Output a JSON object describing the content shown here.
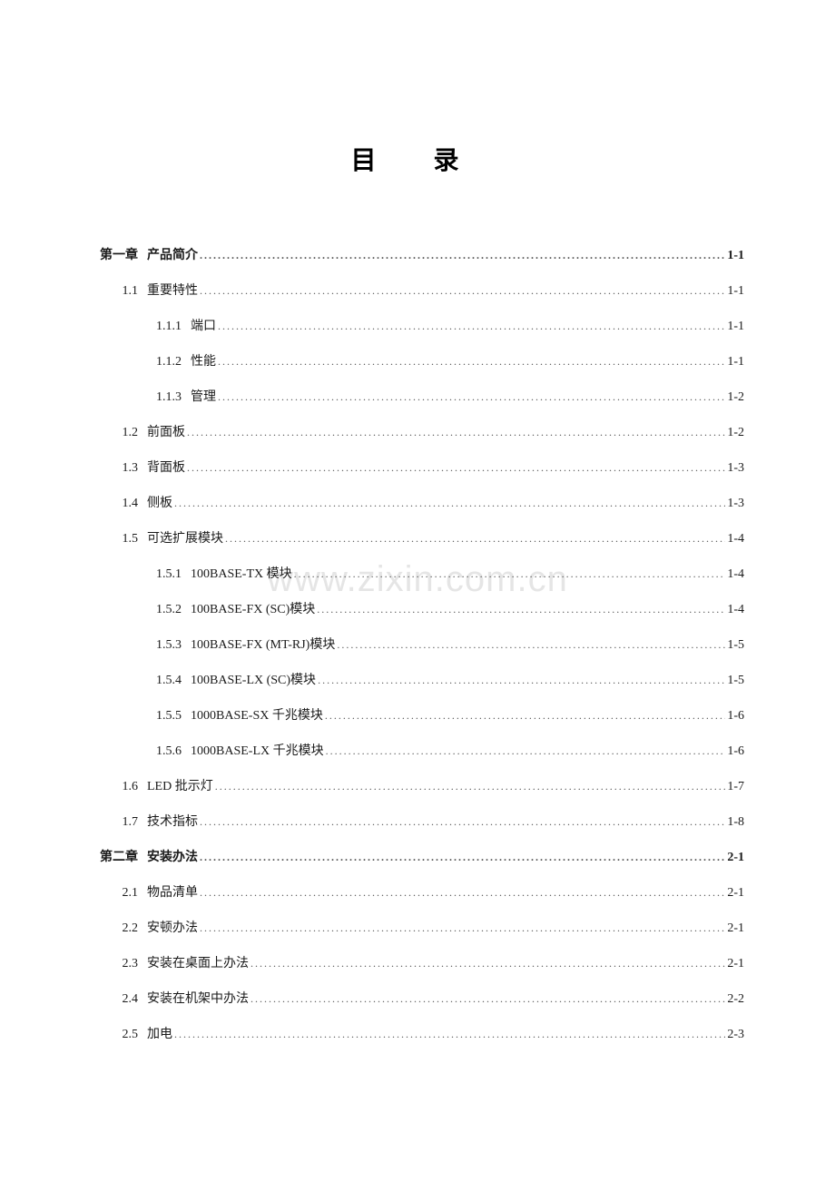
{
  "title": "目 录",
  "watermark": "www.zixin.com.cn",
  "entries": [
    {
      "level": 1,
      "num": "第一章",
      "label": "产品简介",
      "page": "1-1",
      "bold": true
    },
    {
      "level": 2,
      "num": "1.1",
      "label": "重要特性",
      "page": "1-1"
    },
    {
      "level": 3,
      "num": "1.1.1",
      "label": "端口",
      "page": "1-1"
    },
    {
      "level": 3,
      "num": "1.1.2",
      "label": "性能",
      "page": "1-1"
    },
    {
      "level": 3,
      "num": "1.1.3",
      "label": "管理",
      "page": "1-2"
    },
    {
      "level": 2,
      "num": "1.2",
      "label": "前面板",
      "page": "1-2"
    },
    {
      "level": 2,
      "num": "1.3",
      "label": "背面板",
      "page": "1-3"
    },
    {
      "level": 2,
      "num": "1.4",
      "label": "侧板",
      "page": "1-3"
    },
    {
      "level": 2,
      "num": "1.5",
      "label": "可选扩展模块",
      "page": "1-4"
    },
    {
      "level": 3,
      "num": "1.5.1",
      "label": "100BASE-TX 模块",
      "page": "1-4"
    },
    {
      "level": 3,
      "num": "1.5.2",
      "label": "100BASE-FX (SC)模块",
      "page": "1-4"
    },
    {
      "level": 3,
      "num": "1.5.3",
      "label": "100BASE-FX (MT-RJ)模块",
      "page": "1-5"
    },
    {
      "level": 3,
      "num": "1.5.4",
      "label": "100BASE-LX (SC)模块",
      "page": "1-5"
    },
    {
      "level": 3,
      "num": "1.5.5",
      "label": "1000BASE-SX 千兆模块",
      "page": "1-6"
    },
    {
      "level": 3,
      "num": "1.5.6",
      "label": "1000BASE-LX 千兆模块",
      "page": "1-6"
    },
    {
      "level": 2,
      "num": "1.6",
      "label": "LED 批示灯",
      "page": "1-7"
    },
    {
      "level": 2,
      "num": "1.7",
      "label": "技术指标",
      "page": "1-8"
    },
    {
      "level": 1,
      "num": "第二章",
      "label": "安装办法",
      "page": "2-1",
      "bold": true
    },
    {
      "level": 2,
      "num": "2.1",
      "label": "物品清单",
      "page": "2-1"
    },
    {
      "level": 2,
      "num": "2.2",
      "label": "安顿办法",
      "page": "2-1"
    },
    {
      "level": 2,
      "num": "2.3",
      "label": "安装在桌面上办法",
      "page": "2-1"
    },
    {
      "level": 2,
      "num": "2.4",
      "label": "安装在机架中办法",
      "page": "2-2"
    },
    {
      "level": 2,
      "num": "2.5",
      "label": "加电",
      "page": "2-3"
    }
  ],
  "colors": {
    "background": "#ffffff",
    "text": "#1a1a1a",
    "watermark": "rgba(0,0,0,0.10)"
  },
  "typography": {
    "title_fontsize": 28,
    "entry_fontsize": 14,
    "font_family": "SimSun"
  }
}
